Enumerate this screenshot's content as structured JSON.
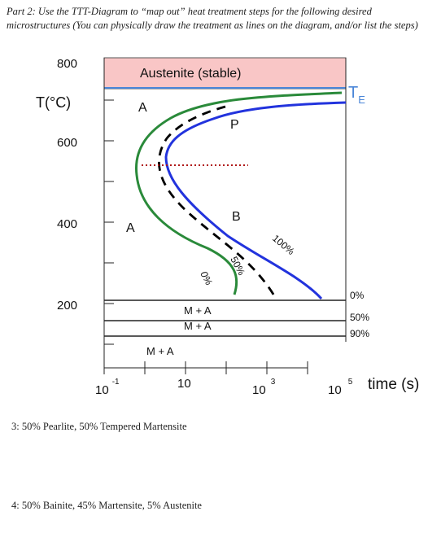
{
  "prompt": "Part 2: Use the TTT-Diagram to “map out” heat treatment steps for the following desired microstructures (You can physically draw the treatment as lines on the diagram, and/or list the steps)",
  "diagram": {
    "y_axis_label": "T(°C)",
    "y_ticks": [
      "800",
      "600",
      "400",
      "200"
    ],
    "x_ticks": [
      {
        "base": "10",
        "exp": "-1"
      },
      {
        "base": "10",
        "exp": ""
      },
      {
        "base": "10",
        "exp": "3"
      },
      {
        "base": "10",
        "exp": "5"
      }
    ],
    "x_axis_label": "time (s)",
    "austenite_region_label": "Austenite (stable)",
    "te_label": "T",
    "te_subscript": "E",
    "region_labels": {
      "a_upper": "A",
      "a_lower": "A",
      "p": "P",
      "b": "B",
      "m_plus_a_1": "M + A",
      "m_plus_a_2": "M + A",
      "m_plus_a_3": "M + A"
    },
    "curve_labels": {
      "zero": "0%",
      "fifty": "50%",
      "hundred": "100%"
    },
    "martensite_labels": {
      "ms": "0%",
      "m50": "50%",
      "m90": "90%"
    },
    "colors": {
      "austenite_fill": "#f9c6c6",
      "te_line": "#4a86d8",
      "start_curve": "#2a8a3a",
      "finish_curve": "#2233dd",
      "fifty_curve": "#000000",
      "red_dotted": "#b01818"
    }
  },
  "answers": [
    "3: 50% Pearlite, 50% Tempered Martensite",
    "4: 50% Bainite, 45% Martensite, 5% Austenite"
  ]
}
